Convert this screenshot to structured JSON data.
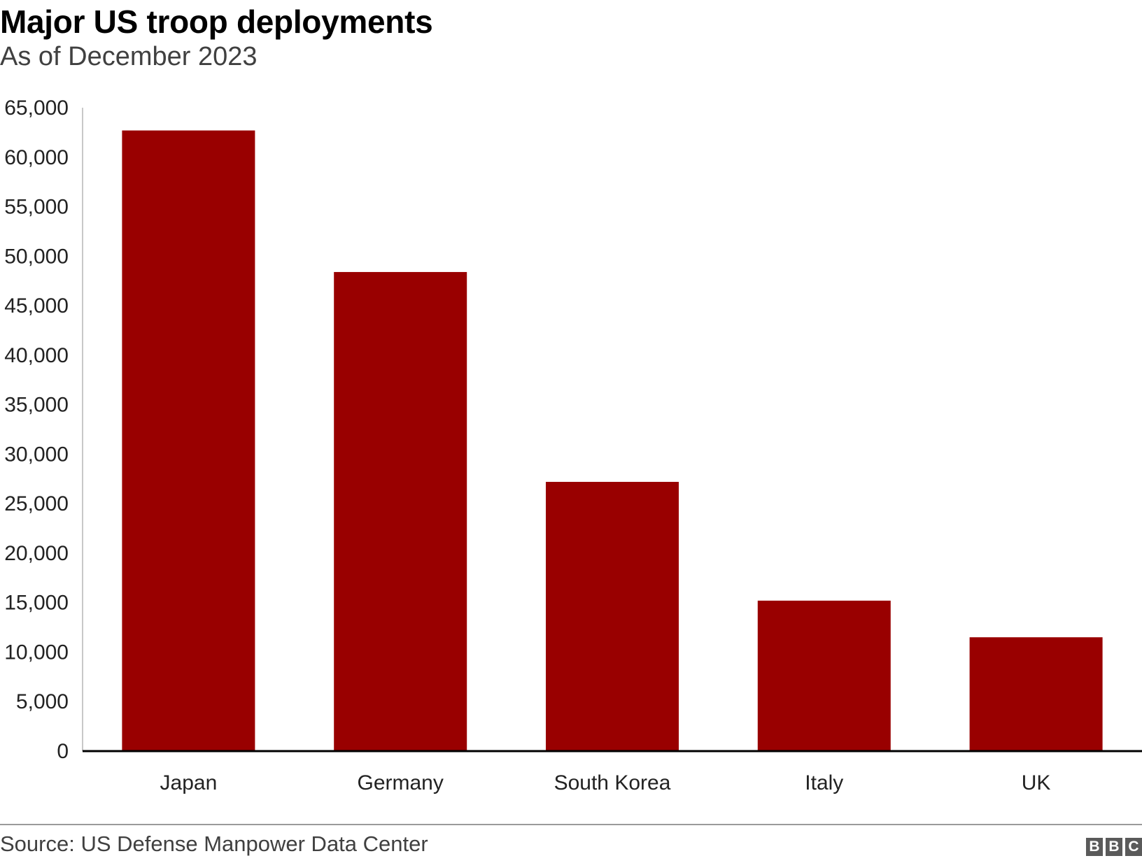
{
  "chart_data": {
    "type": "bar",
    "title": "Major US troop deployments",
    "subtitle": "As of December 2023",
    "categories": [
      "Japan",
      "Germany",
      "South Korea",
      "Italy",
      "UK"
    ],
    "values": [
      62700,
      48400,
      27200,
      15200,
      11500
    ],
    "xlabel": "",
    "ylabel": "",
    "ylim": [
      0,
      65000
    ],
    "yticks": [
      "0",
      "5,000",
      "10,000",
      "15,000",
      "20,000",
      "25,000",
      "30,000",
      "35,000",
      "40,000",
      "45,000",
      "50,000",
      "55,000",
      "60,000",
      "65,000"
    ],
    "ytick_values": [
      0,
      5000,
      10000,
      15000,
      20000,
      25000,
      30000,
      35000,
      40000,
      45000,
      50000,
      55000,
      60000,
      65000
    ],
    "grid": false,
    "legend": "none",
    "colors": {
      "bar": "#990000",
      "axis": "#000000"
    }
  },
  "footer": {
    "source": "Source: US Defense Manpower Data Center",
    "logo_letters": [
      "B",
      "B",
      "C"
    ]
  }
}
